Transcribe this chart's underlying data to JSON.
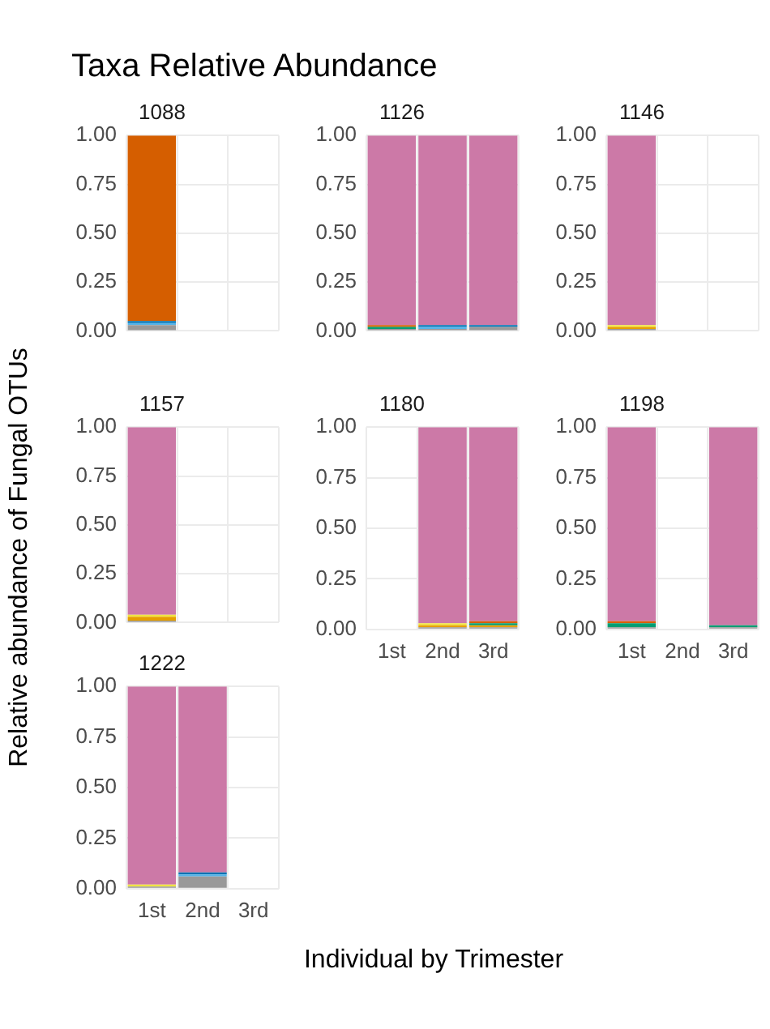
{
  "chart_data": [
    {
      "type": "bar",
      "title": "Taxa Relative Abundance",
      "subtitle": "1088",
      "categories": [
        null,
        null,
        null
      ],
      "stacked": true,
      "ylim": [
        0,
        1
      ],
      "yticks": [
        {
          "value": 0,
          "label": "0.00"
        },
        {
          "value": 0.25,
          "label": "0.25"
        },
        {
          "value": 0.5,
          "label": "0.50"
        },
        {
          "value": 0.75,
          "label": "0.75"
        },
        {
          "value": 1,
          "label": "1.00"
        }
      ],
      "grid": true,
      "tick_labels": "y",
      "xlabel": "Individual by Trimester",
      "ylabel": "Relative abundance of Fungal OTUs",
      "series": [
        {
          "color": "#999999",
          "values": [
            0.03,
            null,
            null
          ]
        },
        {
          "color": "#56b4e9",
          "values": [
            0.01,
            null,
            null
          ]
        },
        {
          "color": "#0072b2",
          "values": [
            0.01,
            null,
            null
          ]
        },
        {
          "color": "#d55e00",
          "values": [
            0.95,
            null,
            null
          ]
        }
      ]
    },
    {
      "type": "bar",
      "title": "1126",
      "categories": [
        null,
        null,
        null
      ],
      "stacked": true,
      "ylim": [
        0,
        1
      ],
      "yticks": [
        {
          "value": 0,
          "label": "0.00"
        },
        {
          "value": 0.25,
          "label": "0.25"
        },
        {
          "value": 0.5,
          "label": "0.50"
        },
        {
          "value": 0.75,
          "label": "0.75"
        },
        {
          "value": 1,
          "label": "1.00"
        }
      ],
      "grid": true,
      "tick_labels": "y",
      "series": [
        {
          "color": "#999999",
          "values": [
            0.01,
            0.01,
            0.02
          ]
        },
        {
          "color": "#009e73",
          "values": [
            0.01,
            null,
            null
          ]
        },
        {
          "color": "#56b4e9",
          "values": [
            null,
            0.01,
            null
          ]
        },
        {
          "color": "#0072b2",
          "values": [
            null,
            0.01,
            0.01
          ]
        },
        {
          "color": "#d55e00",
          "values": [
            0.01,
            null,
            null
          ]
        },
        {
          "color": "#cc79a7",
          "values": [
            0.97,
            0.97,
            0.97
          ]
        }
      ]
    },
    {
      "type": "bar",
      "title": "1146",
      "categories": [
        null,
        null,
        null
      ],
      "stacked": true,
      "ylim": [
        0,
        1
      ],
      "yticks": [
        {
          "value": 0,
          "label": "0.00"
        },
        {
          "value": 0.25,
          "label": "0.25"
        },
        {
          "value": 0.5,
          "label": "0.50"
        },
        {
          "value": 0.75,
          "label": "0.75"
        },
        {
          "value": 1,
          "label": "1.00"
        }
      ],
      "grid": true,
      "tick_labels": "y",
      "series": [
        {
          "color": "#999999",
          "values": [
            0.01,
            null,
            null
          ]
        },
        {
          "color": "#e69f00",
          "values": [
            0.01,
            null,
            null
          ]
        },
        {
          "color": "#f0e442",
          "values": [
            0.01,
            null,
            null
          ]
        },
        {
          "color": "#cc79a7",
          "values": [
            0.97,
            null,
            null
          ]
        }
      ]
    },
    {
      "type": "bar",
      "title": "1157",
      "categories": [
        null,
        null,
        null
      ],
      "stacked": true,
      "ylim": [
        0,
        1
      ],
      "yticks": [
        {
          "value": 0,
          "label": "0.00"
        },
        {
          "value": 0.25,
          "label": "0.25"
        },
        {
          "value": 0.5,
          "label": "0.50"
        },
        {
          "value": 0.75,
          "label": "0.75"
        },
        {
          "value": 1,
          "label": "1.00"
        }
      ],
      "grid": true,
      "tick_labels": "y",
      "series": [
        {
          "color": "#999999",
          "values": [
            0.01,
            null,
            null
          ]
        },
        {
          "color": "#e69f00",
          "values": [
            0.02,
            null,
            null
          ]
        },
        {
          "color": "#f0e442",
          "values": [
            0.01,
            null,
            null
          ]
        },
        {
          "color": "#cc79a7",
          "values": [
            0.96,
            null,
            null
          ]
        }
      ]
    },
    {
      "type": "bar",
      "title": "1180",
      "categories": [
        "1st",
        "2nd",
        "3rd"
      ],
      "stacked": true,
      "ylim": [
        0,
        1
      ],
      "yticks": [
        {
          "value": 0,
          "label": "0.00"
        },
        {
          "value": 0.25,
          "label": "0.25"
        },
        {
          "value": 0.5,
          "label": "0.50"
        },
        {
          "value": 0.75,
          "label": "0.75"
        },
        {
          "value": 1,
          "label": "1.00"
        }
      ],
      "grid": true,
      "series": [
        {
          "color": "#999999",
          "values": [
            null,
            0.01,
            0.01
          ]
        },
        {
          "color": "#e69f00",
          "values": [
            null,
            0.01,
            0.01
          ]
        },
        {
          "color": "#009e73",
          "values": [
            null,
            null,
            0.01
          ]
        },
        {
          "color": "#f0e442",
          "values": [
            null,
            0.01,
            null
          ]
        },
        {
          "color": "#d55e00",
          "values": [
            null,
            null,
            0.01
          ]
        },
        {
          "color": "#cc79a7",
          "values": [
            null,
            0.97,
            0.96
          ]
        }
      ]
    },
    {
      "type": "bar",
      "title": "1198",
      "categories": [
        "1st",
        "2nd",
        "3rd"
      ],
      "stacked": true,
      "ylim": [
        0,
        1
      ],
      "yticks": [
        {
          "value": 0,
          "label": "0.00"
        },
        {
          "value": 0.25,
          "label": "0.25"
        },
        {
          "value": 0.5,
          "label": "0.50"
        },
        {
          "value": 0.75,
          "label": "0.75"
        },
        {
          "value": 1,
          "label": "1.00"
        }
      ],
      "grid": true,
      "series": [
        {
          "color": "#999999",
          "values": [
            0.01,
            null,
            0.01
          ]
        },
        {
          "color": "#009e73",
          "values": [
            0.02,
            null,
            0.01
          ]
        },
        {
          "color": "#d55e00",
          "values": [
            0.01,
            null,
            null
          ]
        },
        {
          "color": "#cc79a7",
          "values": [
            0.96,
            null,
            0.98
          ]
        }
      ]
    },
    {
      "type": "bar",
      "title": "1222",
      "categories": [
        "1st",
        "2nd",
        "3rd"
      ],
      "stacked": true,
      "ylim": [
        0,
        1
      ],
      "yticks": [
        {
          "value": 0,
          "label": "0.00"
        },
        {
          "value": 0.25,
          "label": "0.25"
        },
        {
          "value": 0.5,
          "label": "0.50"
        },
        {
          "value": 0.75,
          "label": "0.75"
        },
        {
          "value": 1,
          "label": "1.00"
        }
      ],
      "grid": true,
      "series": [
        {
          "color": "#999999",
          "values": [
            0.01,
            0.06,
            null
          ]
        },
        {
          "color": "#56b4e9",
          "values": [
            null,
            0.01,
            null
          ]
        },
        {
          "color": "#0072b2",
          "values": [
            null,
            0.01,
            null
          ]
        },
        {
          "color": "#f0e442",
          "values": [
            0.01,
            null,
            null
          ]
        },
        {
          "color": "#cc79a7",
          "values": [
            0.98,
            0.92,
            null
          ]
        }
      ]
    }
  ]
}
